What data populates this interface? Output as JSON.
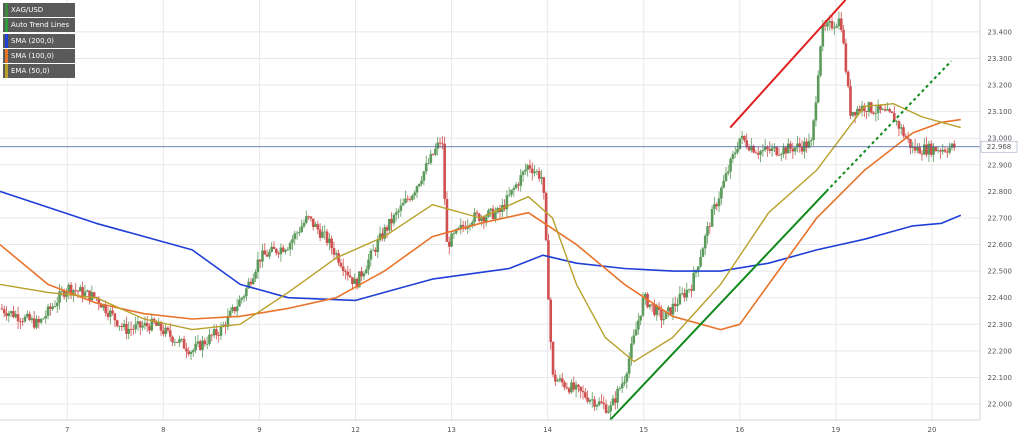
{
  "legend": [
    {
      "label": "XAG/USD",
      "color": "#3d8a3d"
    },
    {
      "label": "Auto Trend Lines",
      "color": "#2e9a3a"
    },
    {
      "label": "SMA (200,0)",
      "color": "#1f3fd6"
    },
    {
      "label": "SMA (100,0)",
      "color": "#e8732a"
    },
    {
      "label": "EMA (50,0)",
      "color": "#b8a02a"
    }
  ],
  "colors": {
    "up": "#5c9a5c",
    "down": "#d05050",
    "hline": "#3d5a9c",
    "red_trend": "#e02020",
    "green_trend": "#0f8a1a"
  },
  "chart_data": {
    "type": "candlestick",
    "symbol": "XAG/USD",
    "x_ticks": [
      "7",
      "8",
      "9",
      "12",
      "13",
      "14",
      "15",
      "16",
      "19",
      "20"
    ],
    "y_ticks": [
      "22.000",
      "22.100",
      "22.200",
      "22.300",
      "22.400",
      "22.500",
      "22.600",
      "22.700",
      "22.800",
      "22.900",
      "23.000",
      "23.100",
      "23.200",
      "23.300",
      "23.400"
    ],
    "ylim": [
      21.94,
      23.52
    ],
    "xlim": [
      0,
      10.2
    ],
    "last_price": "22.968",
    "anchors": [
      [
        0.0,
        22.36
      ],
      [
        0.4,
        22.3
      ],
      [
        0.7,
        22.44
      ],
      [
        1.0,
        22.4
      ],
      [
        1.3,
        22.28
      ],
      [
        1.6,
        22.3
      ],
      [
        2.0,
        22.2
      ],
      [
        2.3,
        22.28
      ],
      [
        2.55,
        22.42
      ],
      [
        2.7,
        22.55
      ],
      [
        3.0,
        22.6
      ],
      [
        3.2,
        22.7
      ],
      [
        3.4,
        22.62
      ],
      [
        3.7,
        22.45
      ],
      [
        4.0,
        22.65
      ],
      [
        4.3,
        22.8
      ],
      [
        4.6,
        23.0
      ],
      [
        4.65,
        22.6
      ],
      [
        4.9,
        22.7
      ],
      [
        5.2,
        22.72
      ],
      [
        5.5,
        22.9
      ],
      [
        5.65,
        22.85
      ],
      [
        5.75,
        22.1
      ],
      [
        6.0,
        22.05
      ],
      [
        6.35,
        21.98
      ],
      [
        6.5,
        22.1
      ],
      [
        6.7,
        22.4
      ],
      [
        6.9,
        22.32
      ],
      [
        7.2,
        22.45
      ],
      [
        7.4,
        22.7
      ],
      [
        7.55,
        22.85
      ],
      [
        7.7,
        23.0
      ],
      [
        7.9,
        22.95
      ],
      [
        8.2,
        22.96
      ],
      [
        8.45,
        22.98
      ],
      [
        8.55,
        23.4
      ],
      [
        8.75,
        23.45
      ],
      [
        8.85,
        23.1
      ],
      [
        9.0,
        23.12
      ],
      [
        9.3,
        23.08
      ],
      [
        9.5,
        22.96
      ],
      [
        9.8,
        22.96
      ],
      [
        9.95,
        22.968
      ]
    ],
    "sma200": [
      [
        0.0,
        22.8
      ],
      [
        1.0,
        22.68
      ],
      [
        2.0,
        22.58
      ],
      [
        2.5,
        22.45
      ],
      [
        3.0,
        22.4
      ],
      [
        3.7,
        22.39
      ],
      [
        4.5,
        22.47
      ],
      [
        5.3,
        22.51
      ],
      [
        5.65,
        22.56
      ],
      [
        6.0,
        22.53
      ],
      [
        6.5,
        22.51
      ],
      [
        7.0,
        22.5
      ],
      [
        7.5,
        22.5
      ],
      [
        8.0,
        22.53
      ],
      [
        8.5,
        22.58
      ],
      [
        9.0,
        22.62
      ],
      [
        9.5,
        22.67
      ],
      [
        9.8,
        22.68
      ],
      [
        10.0,
        22.71
      ]
    ],
    "sma100": [
      [
        0.0,
        22.6
      ],
      [
        0.5,
        22.45
      ],
      [
        1.0,
        22.38
      ],
      [
        1.5,
        22.34
      ],
      [
        2.0,
        22.32
      ],
      [
        2.5,
        22.33
      ],
      [
        3.0,
        22.36
      ],
      [
        3.5,
        22.4
      ],
      [
        4.0,
        22.5
      ],
      [
        4.5,
        22.63
      ],
      [
        5.0,
        22.68
      ],
      [
        5.5,
        22.72
      ],
      [
        6.0,
        22.6
      ],
      [
        6.5,
        22.45
      ],
      [
        7.0,
        22.33
      ],
      [
        7.5,
        22.28
      ],
      [
        7.7,
        22.3
      ],
      [
        8.0,
        22.45
      ],
      [
        8.5,
        22.7
      ],
      [
        9.0,
        22.88
      ],
      [
        9.5,
        23.02
      ],
      [
        9.8,
        23.06
      ],
      [
        10.0,
        23.07
      ]
    ],
    "ema50": [
      [
        0.0,
        22.45
      ],
      [
        0.5,
        22.42
      ],
      [
        1.0,
        22.4
      ],
      [
        1.5,
        22.32
      ],
      [
        2.0,
        22.28
      ],
      [
        2.5,
        22.3
      ],
      [
        3.0,
        22.42
      ],
      [
        3.5,
        22.55
      ],
      [
        4.0,
        22.63
      ],
      [
        4.5,
        22.75
      ],
      [
        5.0,
        22.7
      ],
      [
        5.5,
        22.78
      ],
      [
        5.75,
        22.7
      ],
      [
        6.0,
        22.45
      ],
      [
        6.3,
        22.25
      ],
      [
        6.6,
        22.16
      ],
      [
        7.0,
        22.25
      ],
      [
        7.5,
        22.45
      ],
      [
        8.0,
        22.72
      ],
      [
        8.5,
        22.88
      ],
      [
        8.75,
        23.0
      ],
      [
        9.0,
        23.12
      ],
      [
        9.3,
        23.13
      ],
      [
        9.6,
        23.08
      ],
      [
        10.0,
        23.04
      ]
    ],
    "trend_green": [
      [
        6.35,
        21.94
      ],
      [
        8.6,
        22.8
      ]
    ],
    "trend_green_dashed": [
      [
        8.6,
        22.8
      ],
      [
        9.9,
        23.29
      ]
    ],
    "trend_red": [
      [
        7.6,
        23.04
      ],
      [
        8.8,
        23.52
      ]
    ]
  }
}
